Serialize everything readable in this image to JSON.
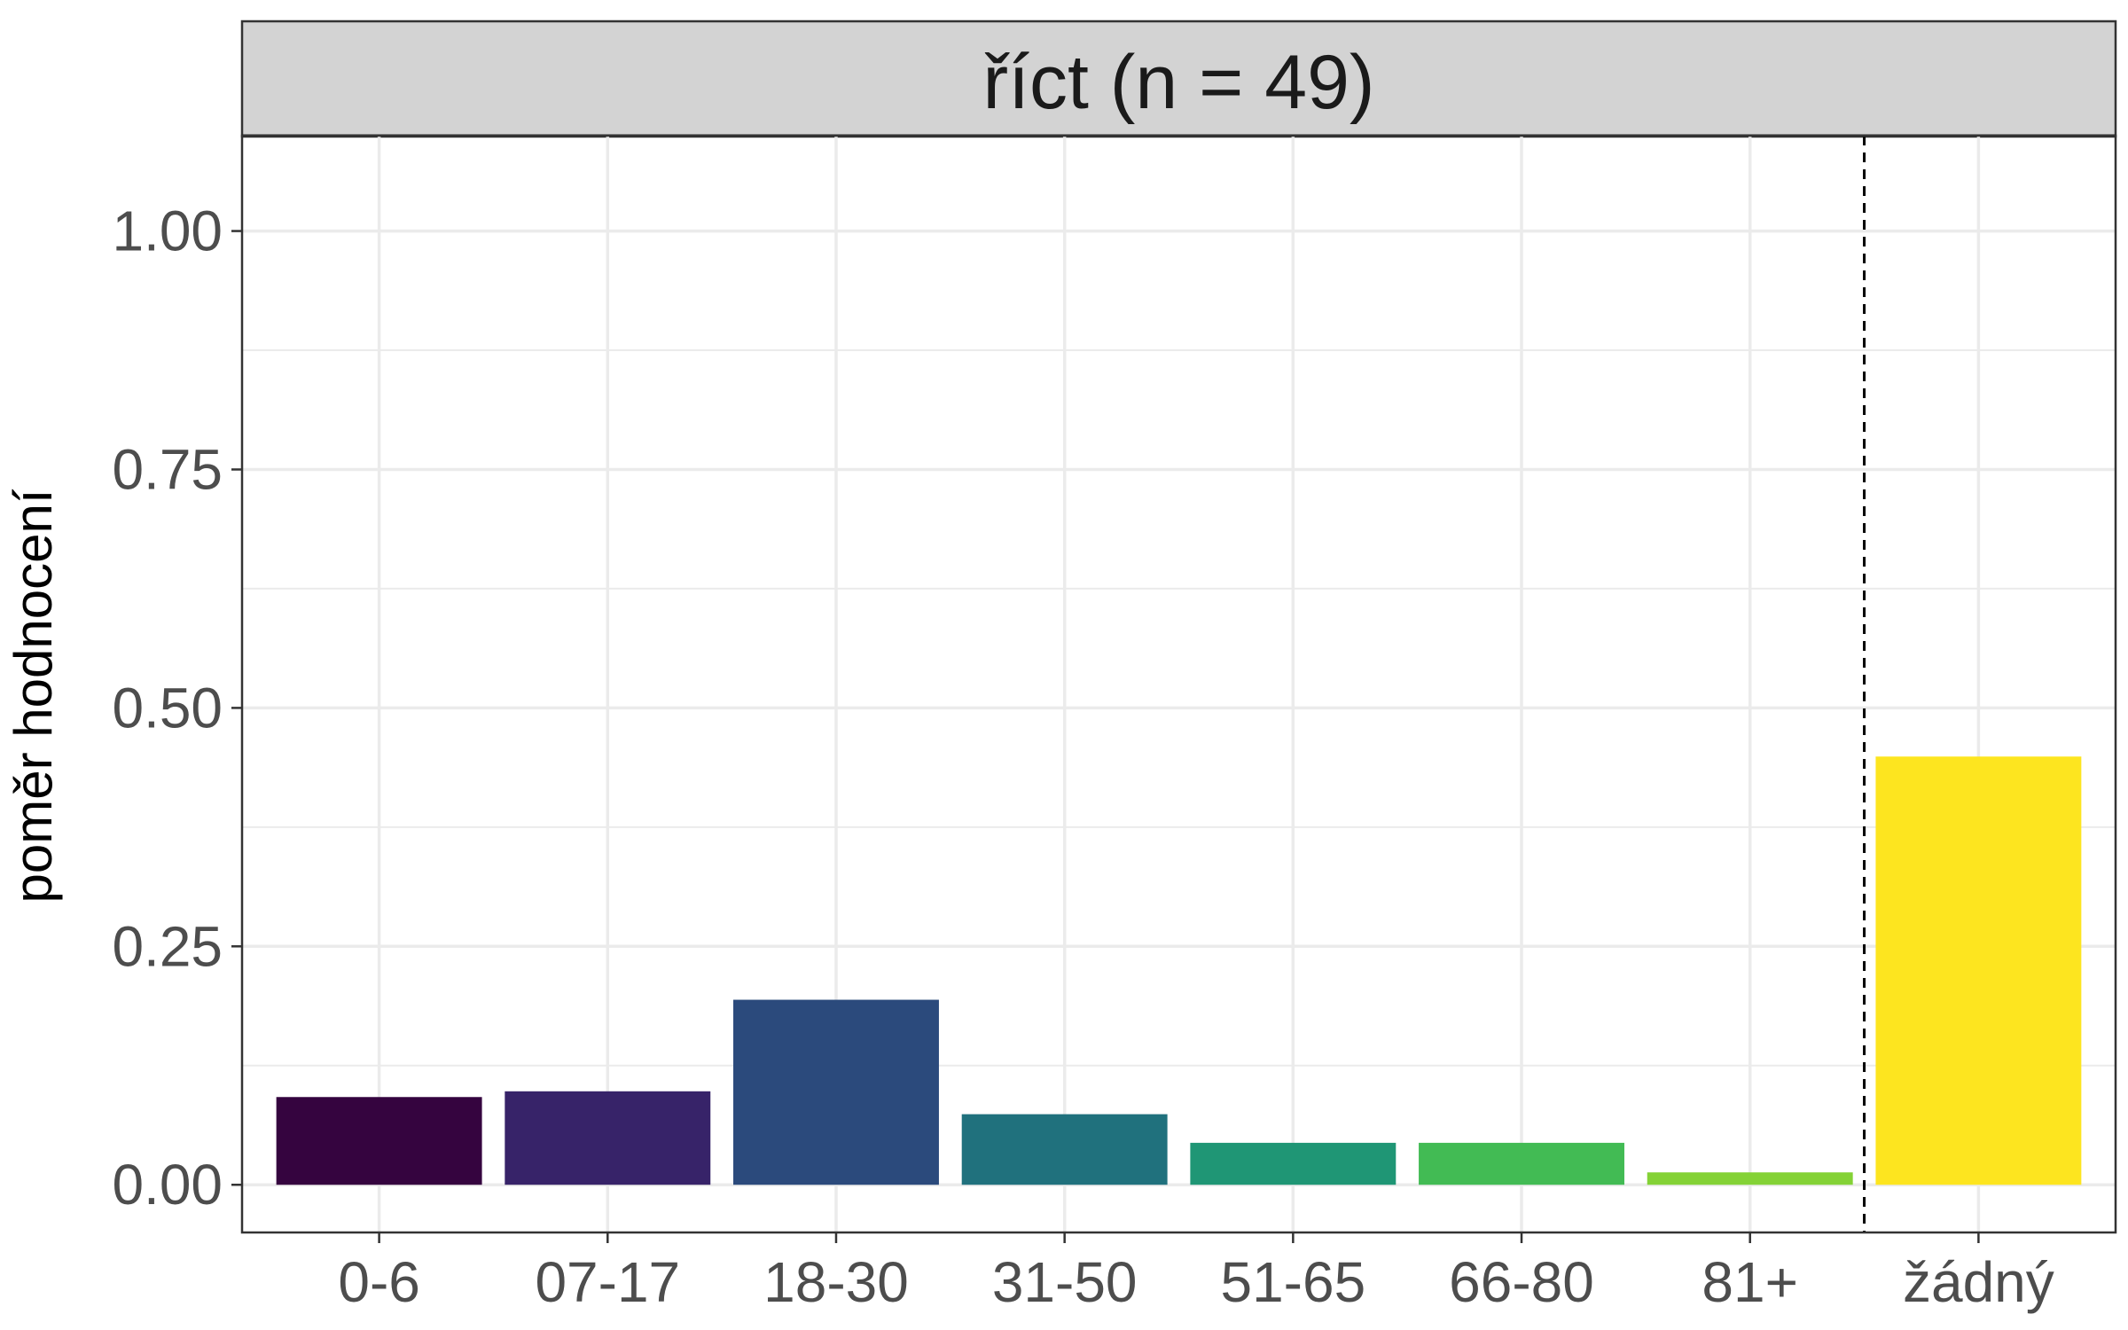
{
  "chart_data": {
    "type": "bar",
    "facet_title": "říct (n = 49)",
    "ylabel": "poměr hodnocení",
    "xlabel": "",
    "categories": [
      "0-6",
      "07-17",
      "18-30",
      "31-50",
      "51-65",
      "66-80",
      "81+",
      "žádný"
    ],
    "values": [
      0.092,
      0.098,
      0.194,
      0.074,
      0.044,
      0.044,
      0.013,
      0.449
    ],
    "colors": [
      "#35043F",
      "#372369",
      "#2B4A7C",
      "#20717D",
      "#1F9675",
      "#42BB54",
      "#84D236",
      "#FDE51F"
    ],
    "ylim": [
      -0.05,
      1.1
    ],
    "yticks": [
      {
        "value": 0.0,
        "label": "0.00"
      },
      {
        "value": 0.25,
        "label": "0.25"
      },
      {
        "value": 0.5,
        "label": "0.50"
      },
      {
        "value": 0.75,
        "label": "0.75"
      },
      {
        "value": 1.0,
        "label": "1.00"
      }
    ],
    "reference_line": {
      "between": [
        "81+",
        "žádný"
      ],
      "style": "dashed"
    },
    "grid": true,
    "legend": "none"
  }
}
